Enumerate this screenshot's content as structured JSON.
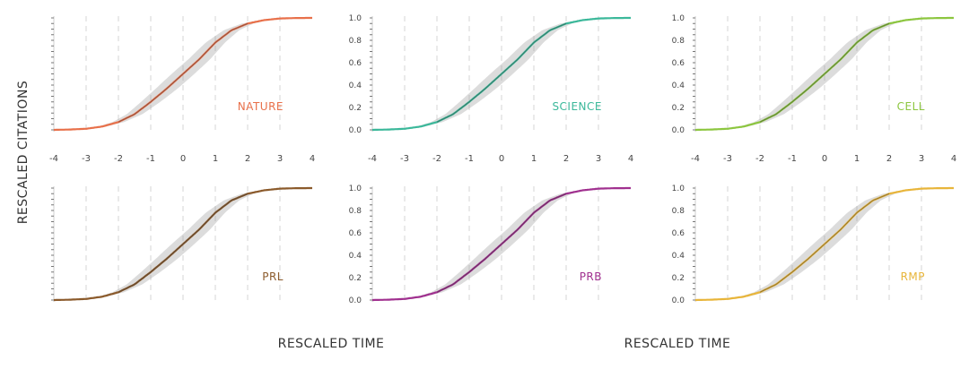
{
  "chart_data": {
    "type": "line",
    "title": "",
    "ylabel": "RESCALED CITATIONS",
    "xlabel": "RESCALED TIME",
    "xlabels_shown": [
      "RESCALED TIME",
      "RESCALED TIME"
    ],
    "xlim": [
      -4,
      4
    ],
    "ylim": [
      0,
      1
    ],
    "x_ticks": [
      "-4",
      "-3",
      "-2",
      "-1",
      "0",
      "1",
      "2",
      "3",
      "4"
    ],
    "y_ticks": [
      "0.0",
      "0.2",
      "0.4",
      "0.6",
      "0.8",
      "1.0"
    ],
    "curve": {
      "x": [
        -4,
        -3.5,
        -3,
        -2.5,
        -2,
        -1.5,
        -1,
        -0.5,
        0,
        0.5,
        1,
        1.5,
        2,
        2.5,
        3,
        3.5,
        4
      ],
      "y": [
        0.0,
        0.003,
        0.01,
        0.03,
        0.07,
        0.14,
        0.25,
        0.37,
        0.5,
        0.63,
        0.78,
        0.89,
        0.95,
        0.98,
        0.995,
        0.999,
        1.0
      ]
    },
    "panels": [
      {
        "name": "NATURE",
        "color": "#e8704a",
        "row": 1,
        "col": 1,
        "show_y_ticks": false,
        "show_x_ticks": true
      },
      {
        "name": "SCIENCE",
        "color": "#3bb89a",
        "row": 1,
        "col": 2,
        "show_y_ticks": true,
        "show_x_ticks": true
      },
      {
        "name": "CELL",
        "color": "#8cc63f",
        "row": 1,
        "col": 3,
        "show_y_ticks": true,
        "show_x_ticks": true
      },
      {
        "name": "PRL",
        "color": "#8b5a2b",
        "row": 2,
        "col": 1,
        "show_y_ticks": false,
        "show_x_ticks": false
      },
      {
        "name": "PRB",
        "color": "#a0308f",
        "row": 2,
        "col": 2,
        "show_y_ticks": true,
        "show_x_ticks": false
      },
      {
        "name": "RMP",
        "color": "#e8b53a",
        "row": 2,
        "col": 3,
        "show_y_ticks": true,
        "show_x_ticks": false
      }
    ]
  }
}
